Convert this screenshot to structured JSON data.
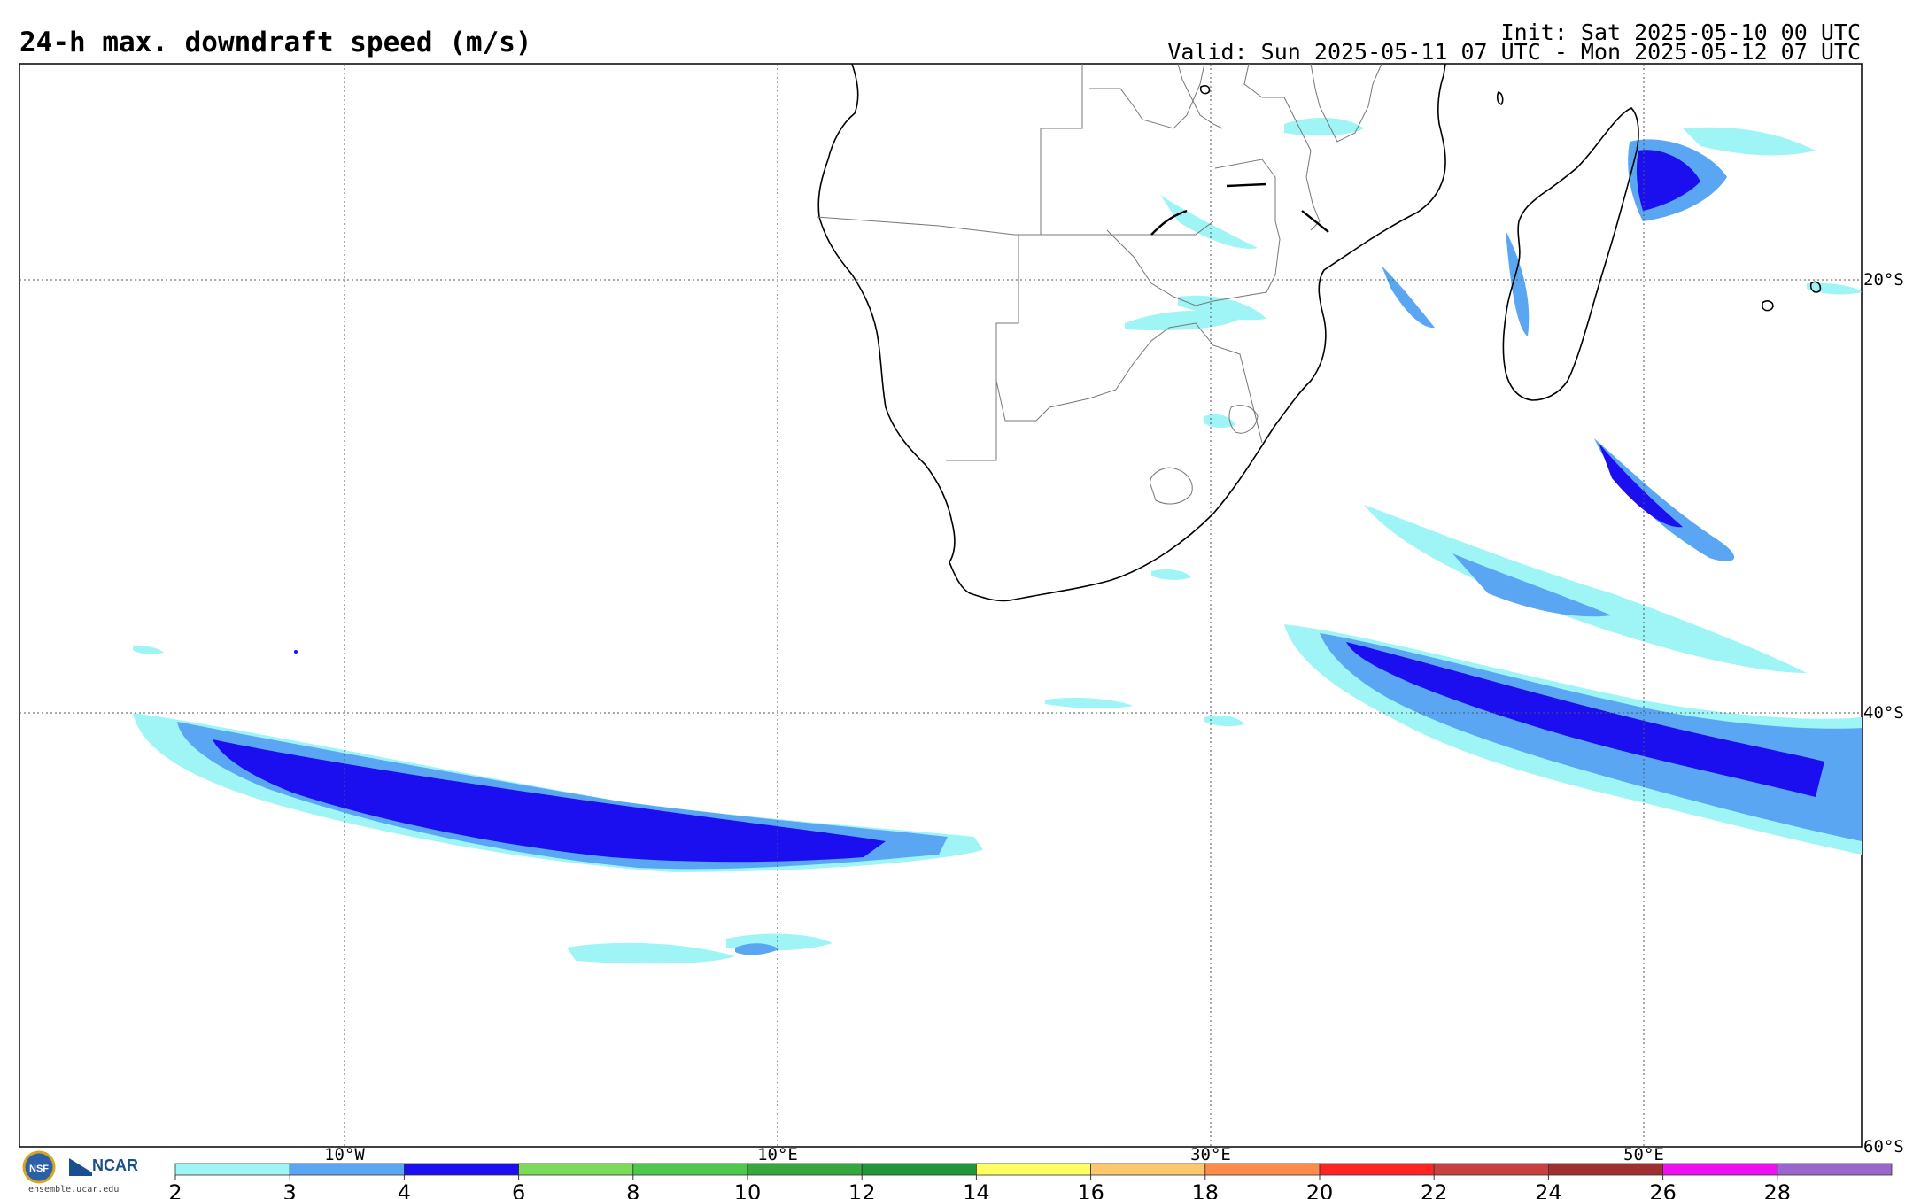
{
  "header": {
    "title": "24-h max. downdraft speed (m/s)",
    "init": "Init: Sat 2025-05-10 00 UTC",
    "valid": "Valid: Sun 2025-05-11 07 UTC - Mon 2025-05-12 07 UTC"
  },
  "map": {
    "lat_labels": [
      "20°S",
      "40°S",
      "60°S"
    ],
    "lon_labels": [
      "10°W",
      "10°E",
      "30°E",
      "50°E"
    ]
  },
  "colorbar": {
    "ticks": [
      "2",
      "3",
      "4",
      "6",
      "8",
      "10",
      "12",
      "14",
      "16",
      "18",
      "20",
      "22",
      "24",
      "26",
      "28"
    ],
    "colors": [
      "#9ff5f6",
      "#5aa6f2",
      "#1b0ff0",
      "#7ddb5a",
      "#4ec84a",
      "#36a83c",
      "#22963a",
      "#ffff60",
      "#ffc66b",
      "#ff8b4a",
      "#ff2424",
      "#c84040",
      "#a03030",
      "#ee10ee",
      "#9b66cc"
    ]
  },
  "footer": {
    "logo_ncar": "NCAR",
    "logo_nsf": "NSF",
    "site": "ensemble.ucar.edu"
  }
}
